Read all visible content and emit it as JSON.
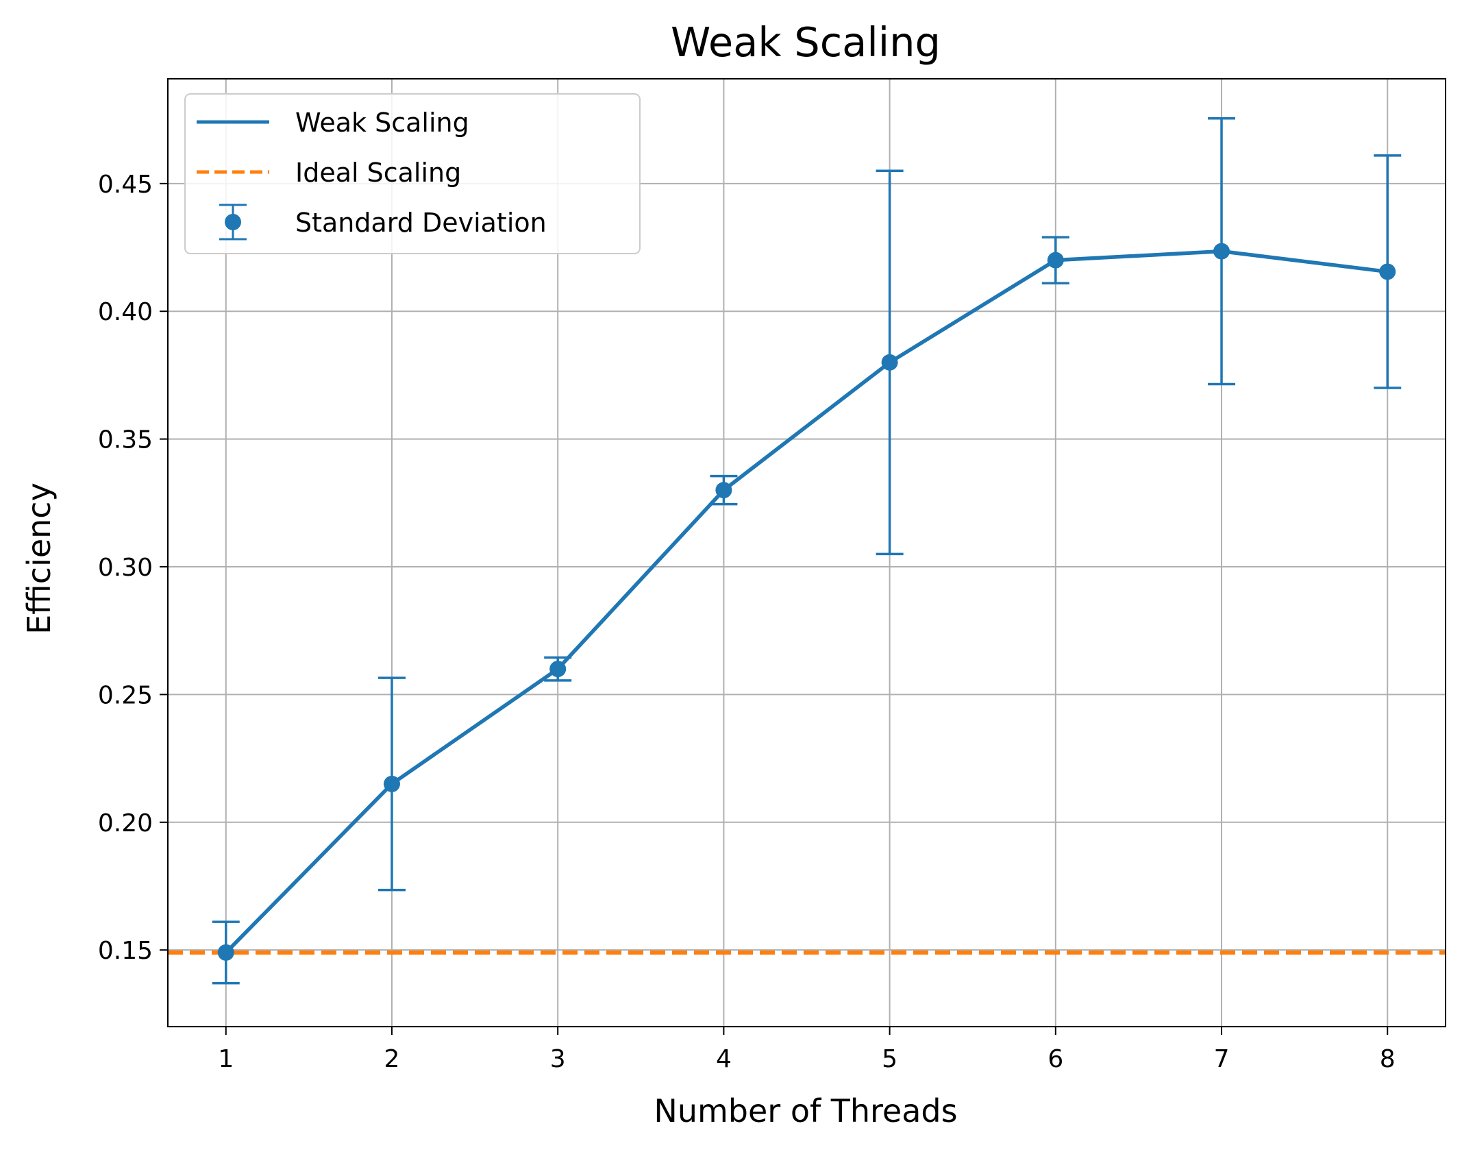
{
  "chart_data": {
    "type": "line",
    "title": "Weak Scaling",
    "xlabel": "Number of Threads",
    "ylabel": "Efficiency",
    "xlim": [
      0.65,
      8.35
    ],
    "ylim": [
      0.12,
      0.491
    ],
    "x_ticks": [
      1,
      2,
      3,
      4,
      5,
      6,
      7,
      8
    ],
    "x_tick_labels": [
      "1",
      "2",
      "3",
      "4",
      "5",
      "6",
      "7",
      "8"
    ],
    "y_ticks": [
      0.15,
      0.2,
      0.25,
      0.3,
      0.35,
      0.4,
      0.45
    ],
    "y_tick_labels": [
      "0.15",
      "0.20",
      "0.25",
      "0.30",
      "0.35",
      "0.40",
      "0.45"
    ],
    "grid": true,
    "legend_position": "top-left",
    "legend": [
      "Weak Scaling",
      "Ideal Scaling",
      "Standard Deviation"
    ],
    "x": [
      1,
      2,
      3,
      4,
      5,
      6,
      7,
      8
    ],
    "series": [
      {
        "name": "Weak Scaling",
        "style": "solid line",
        "color": "#1f77b4",
        "values": [
          0.149,
          0.215,
          0.26,
          0.33,
          0.38,
          0.42,
          0.4235,
          0.4155
        ]
      },
      {
        "name": "Ideal Scaling",
        "style": "dashed horizontal line",
        "color": "#ff7f0e",
        "value": 0.149
      },
      {
        "name": "Standard Deviation",
        "style": "error bars with markers",
        "color": "#1f77b4",
        "values": [
          0.149,
          0.215,
          0.26,
          0.33,
          0.38,
          0.42,
          0.4235,
          0.4155
        ],
        "errors": [
          0.012,
          0.0415,
          0.0045,
          0.0055,
          0.075,
          0.009,
          0.052,
          0.0455
        ]
      }
    ]
  }
}
